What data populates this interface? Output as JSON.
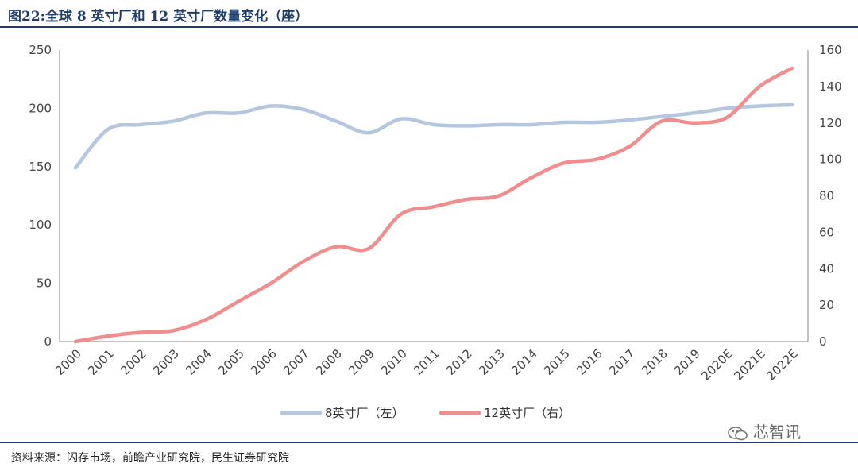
{
  "header": {
    "title": "图22:全球 8 英寸厂和 12 英寸厂数量变化（座）"
  },
  "footer": {
    "source": "资料来源：闪存市场，前瞻产业研究院，民生证券研究院"
  },
  "watermark": {
    "text": "芯智讯",
    "icon": "wechat-icon"
  },
  "chart_data": {
    "type": "line",
    "title": "图22:全球 8 英寸厂和 12 英寸厂数量变化（座）",
    "categories": [
      "2000",
      "2001",
      "2002",
      "2003",
      "2004",
      "2005",
      "2006",
      "2007",
      "2008",
      "2009",
      "2010",
      "2011",
      "2012",
      "2013",
      "2014",
      "2015",
      "2016",
      "2017",
      "2018",
      "2019",
      "2020E",
      "2021E",
      "2022E"
    ],
    "y_left": {
      "ylim": [
        0,
        250
      ],
      "ticks": [
        0,
        50,
        100,
        150,
        200,
        250
      ]
    },
    "y_right": {
      "ylim": [
        0,
        160
      ],
      "ticks": [
        0,
        20,
        40,
        60,
        80,
        100,
        120,
        140,
        160
      ]
    },
    "series": [
      {
        "name": "8英寸厂（左）",
        "axis": "left",
        "color": "#b4c6e0",
        "values": [
          149,
          182,
          186,
          189,
          196,
          196,
          202,
          199,
          189,
          179,
          191,
          186,
          185,
          186,
          186,
          188,
          188,
          190,
          193,
          196,
          200,
          202,
          203
        ]
      },
      {
        "name": "12英寸厂（右）",
        "axis": "right",
        "color": "#f08e8e",
        "values": [
          0,
          3,
          5,
          6,
          12,
          22,
          32,
          44,
          52,
          51,
          70,
          74,
          78,
          80,
          90,
          98,
          100,
          107,
          121,
          120,
          123,
          140,
          150
        ]
      }
    ],
    "legend": "bottom-center",
    "grid": false
  }
}
